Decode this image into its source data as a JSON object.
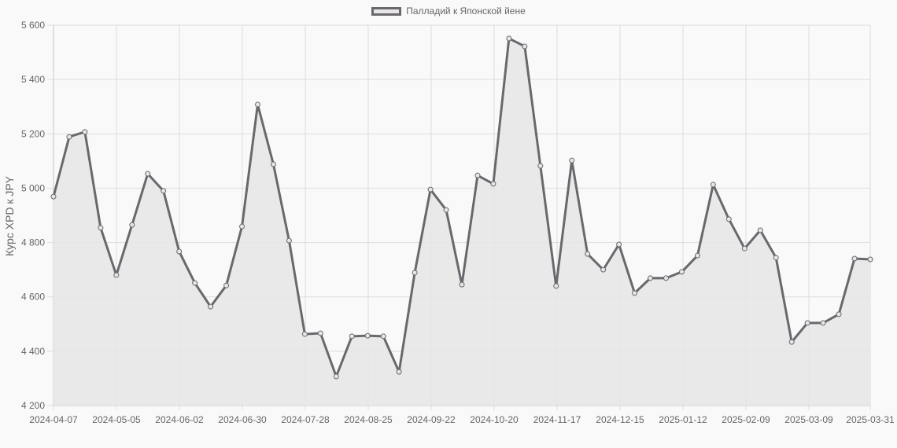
{
  "legend": {
    "label": "Палладий к Японской йене"
  },
  "axes": {
    "ylabel": "Курс XPD к JPY",
    "yticks": [
      "5 600",
      "5 400",
      "5 200",
      "5 000",
      "4 800",
      "4 600",
      "4 400",
      "4 200"
    ],
    "xticks": [
      "2024-04-07",
      "2024-05-05",
      "2024-06-02",
      "2024-06-30",
      "2024-07-28",
      "2024-08-25",
      "2024-09-22",
      "2024-10-20",
      "2024-11-17",
      "2024-12-15",
      "2025-01-12",
      "2025-02-09",
      "2025-03-09",
      "2025-03-31"
    ]
  },
  "colors": {
    "line": "#6b686d",
    "fill": "#e6e6e8",
    "grid": "#dddddd",
    "background": "#f9f9f9"
  },
  "chart_data": {
    "type": "area",
    "title": "",
    "xlabel": "",
    "ylabel": "Курс XPD к JPY",
    "ylim": [
      4200,
      5600
    ],
    "grid": true,
    "legend_position": "top",
    "series": [
      {
        "name": "Палладий к Японской йене",
        "values": [
          4969,
          5189,
          5207,
          4854,
          4680,
          4865,
          5053,
          4990,
          4767,
          4651,
          4564,
          4642,
          4859,
          5308,
          5088,
          4807,
          4463,
          4466,
          4307,
          4455,
          4457,
          4455,
          4324,
          4689,
          4995,
          4920,
          4645,
          5047,
          5016,
          5551,
          5522,
          5082,
          4640,
          5102,
          4758,
          4700,
          4793,
          4614,
          4669,
          4669,
          4692,
          4752,
          5013,
          4886,
          4778,
          4845,
          4744,
          4434,
          4504,
          4504,
          4536,
          4741,
          4738
        ]
      }
    ],
    "x_start": "2024-04-07",
    "x_end": "2025-03-31",
    "x_step": "weekly",
    "xtick_labels": [
      "2024-04-07",
      "2024-05-05",
      "2024-06-02",
      "2024-06-30",
      "2024-07-28",
      "2024-08-25",
      "2024-09-22",
      "2024-10-20",
      "2024-11-17",
      "2024-12-15",
      "2025-01-12",
      "2025-02-09",
      "2025-03-09",
      "2025-03-31"
    ]
  }
}
